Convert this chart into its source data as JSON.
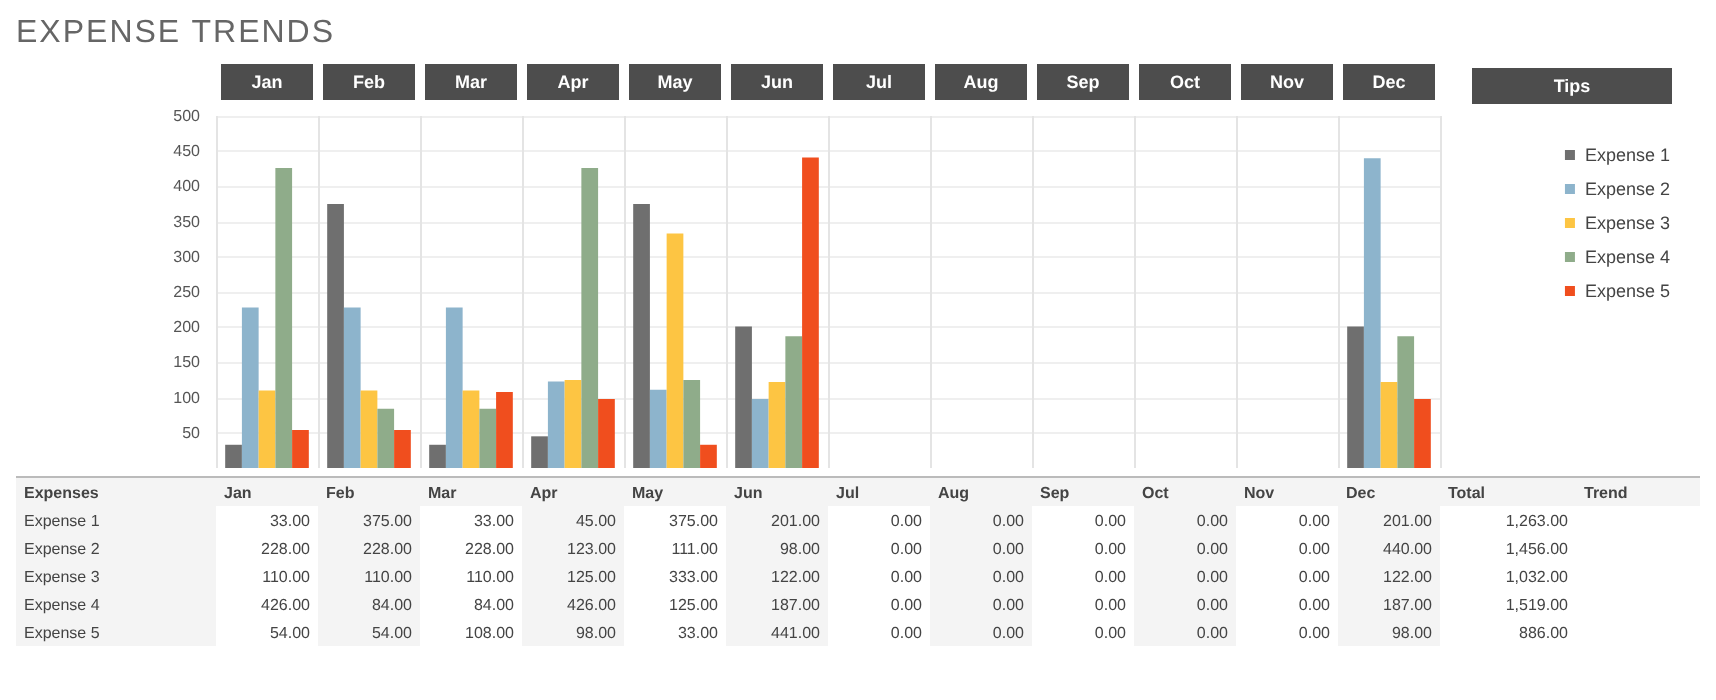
{
  "chart_data": {
    "type": "bar",
    "title": "EXPENSE TRENDS",
    "legend_title": "Tips",
    "categories": [
      "Jan",
      "Feb",
      "Mar",
      "Apr",
      "May",
      "Jun",
      "Jul",
      "Aug",
      "Sep",
      "Oct",
      "Nov",
      "Dec"
    ],
    "series": [
      {
        "name": "Expense 1",
        "color": "#6f6f6f",
        "values": [
          33,
          375,
          33,
          45,
          375,
          201,
          0,
          0,
          0,
          0,
          0,
          201
        ],
        "value_labels": [
          "33.00",
          "375.00",
          "33.00",
          "45.00",
          "375.00",
          "201.00",
          "0.00",
          "0.00",
          "0.00",
          "0.00",
          "0.00",
          "201.00"
        ]
      },
      {
        "name": "Expense 2",
        "color": "#8db4cc",
        "values": [
          228,
          228,
          228,
          123,
          111,
          98,
          0,
          0,
          0,
          0,
          0,
          440
        ],
        "value_labels": [
          "228.00",
          "228.00",
          "228.00",
          "123.00",
          "111.00",
          "98.00",
          "0.00",
          "0.00",
          "0.00",
          "0.00",
          "0.00",
          "440.00"
        ]
      },
      {
        "name": "Expense 3",
        "color": "#fdc543",
        "values": [
          110,
          110,
          110,
          125,
          333,
          122,
          0,
          0,
          0,
          0,
          0,
          122
        ],
        "value_labels": [
          "110.00",
          "110.00",
          "110.00",
          "125.00",
          "333.00",
          "122.00",
          "0.00",
          "0.00",
          "0.00",
          "0.00",
          "0.00",
          "122.00"
        ]
      },
      {
        "name": "Expense 4",
        "color": "#8fac8a",
        "values": [
          426,
          84,
          84,
          426,
          125,
          187,
          0,
          0,
          0,
          0,
          0,
          187
        ],
        "value_labels": [
          "426.00",
          "84.00",
          "84.00",
          "426.00",
          "125.00",
          "187.00",
          "0.00",
          "0.00",
          "0.00",
          "0.00",
          "0.00",
          "187.00"
        ]
      },
      {
        "name": "Expense 5",
        "color": "#f04e1e",
        "values": [
          54,
          54,
          108,
          98,
          33,
          441,
          0,
          0,
          0,
          0,
          0,
          98
        ],
        "value_labels": [
          "54.00",
          "54.00",
          "108.00",
          "98.00",
          "33.00",
          "441.00",
          "0.00",
          "0.00",
          "0.00",
          "0.00",
          "0.00",
          "98.00"
        ]
      }
    ],
    "ylim": [
      0,
      500
    ],
    "yticks": [
      50,
      100,
      150,
      200,
      250,
      300,
      350,
      400,
      450,
      500
    ],
    "grid": true,
    "legend": "right",
    "annotations": [
      "Expenses",
      "Total",
      "Trend",
      "1,263.00",
      "1,456.00",
      "1,032.00",
      "1,519.00",
      "886.00"
    ]
  }
}
